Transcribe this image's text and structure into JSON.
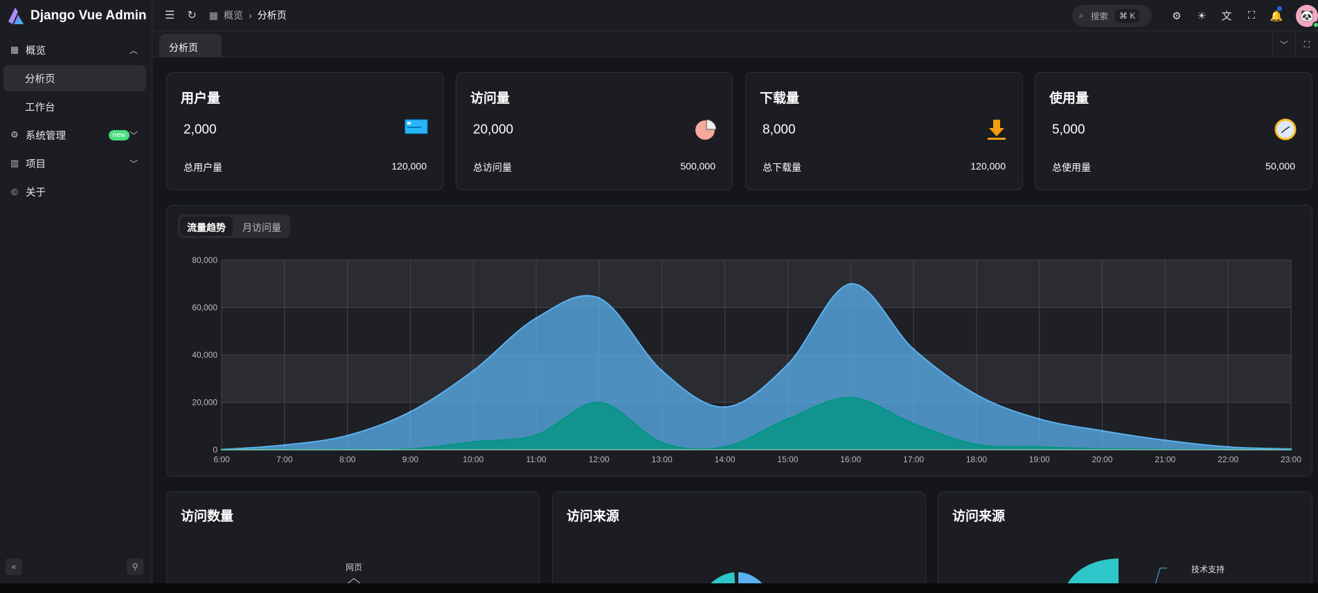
{
  "app": {
    "title": "Django Vue Admin"
  },
  "sidebar": {
    "items": [
      {
        "label": "概览",
        "icon": "dashboard-icon"
      },
      {
        "label": "分析页"
      },
      {
        "label": "工作台"
      },
      {
        "label": "系统管理",
        "icon": "gear-icon",
        "badge": "new"
      },
      {
        "label": "项目",
        "icon": "building-icon"
      },
      {
        "label": "关于",
        "icon": "copyright-icon"
      }
    ]
  },
  "header": {
    "breadcrumb": [
      "概览",
      "分析页"
    ],
    "search_placeholder": "搜索",
    "search_shortcut": "⌘ K"
  },
  "tabs": [
    {
      "label": "分析页"
    }
  ],
  "stats": [
    {
      "title": "用户量",
      "value": "2,000",
      "total_label": "总用户量",
      "total": "120,000",
      "icon": "card-icon"
    },
    {
      "title": "访问量",
      "value": "20,000",
      "total_label": "总访问量",
      "total": "500,000",
      "icon": "pie-chart-icon"
    },
    {
      "title": "下载量",
      "value": "8,000",
      "total_label": "总下载量",
      "total": "120,000",
      "icon": "download-icon"
    },
    {
      "title": "使用量",
      "value": "5,000",
      "total_label": "总使用量",
      "total": "50,000",
      "icon": "clock-icon"
    }
  ],
  "trend": {
    "tabs": [
      "流量趋势",
      "月访问量"
    ]
  },
  "chart_data": {
    "type": "area",
    "categories": [
      "6:00",
      "7:00",
      "8:00",
      "9:00",
      "10:00",
      "11:00",
      "12:00",
      "13:00",
      "14:00",
      "15:00",
      "16:00",
      "17:00",
      "18:00",
      "19:00",
      "20:00",
      "21:00",
      "22:00",
      "23:00"
    ],
    "series": [
      {
        "values": [
          111,
          2000,
          6000,
          16000,
          33333,
          55555,
          64000,
          33333,
          18000,
          36000,
          70000,
          42444,
          23222,
          13000,
          8000,
          4000,
          1200,
          333
        ],
        "color": "#5ab1ef"
      },
      {
        "values": [
          33,
          66,
          88,
          333,
          3333,
          6200,
          20000,
          3000,
          1200,
          13000,
          22000,
          11000,
          2221,
          1201,
          390,
          198,
          60,
          30
        ],
        "color": "#019680"
      }
    ],
    "yticks": [
      "0",
      "20,000",
      "40,000",
      "60,000",
      "80,000"
    ],
    "ylim": [
      0,
      80000
    ],
    "grid": true
  },
  "bottom": [
    {
      "title": "访问数量",
      "label": "网页"
    },
    {
      "title": "访问来源"
    },
    {
      "title": "访问来源",
      "label": "技术支持"
    }
  ]
}
